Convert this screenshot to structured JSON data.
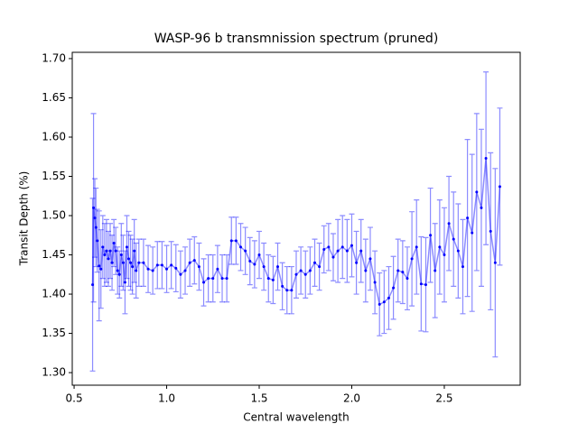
{
  "chart_data": {
    "type": "errorbar",
    "title": "WASP-96 b transmnission spectrum (pruned)",
    "x_label": "Central wavelength",
    "y_label": "Transit Depth (%)",
    "xlim": [
      0.49,
      2.91
    ],
    "ylim": [
      1.284,
      1.708
    ],
    "xticks": [
      0.5,
      {
        "value": 1.0,
        "label": "1.0"
      },
      1.5,
      {
        "value": 2.0,
        "label": "2.0"
      },
      2.5
    ],
    "yticks": [
      {
        "value": 1.3,
        "label": "1.30"
      },
      1.35,
      {
        "value": 1.4,
        "label": "1.40"
      },
      1.45,
      {
        "value": 1.5,
        "label": "1.50"
      },
      1.55,
      {
        "value": 1.6,
        "label": "1.60"
      },
      1.65,
      {
        "value": 1.7,
        "label": "1.70"
      }
    ],
    "series": [
      {
        "color": "#0000ff",
        "x": [
          0.6,
          0.605,
          0.612,
          0.618,
          0.625,
          0.635,
          0.645,
          0.655,
          0.665,
          0.675,
          0.685,
          0.695,
          0.705,
          0.715,
          0.725,
          0.735,
          0.745,
          0.755,
          0.765,
          0.775,
          0.785,
          0.795,
          0.805,
          0.815,
          0.825,
          0.835,
          0.85,
          0.875,
          0.9,
          0.925,
          0.95,
          0.975,
          1.0,
          1.025,
          1.05,
          1.075,
          1.1,
          1.125,
          1.15,
          1.175,
          1.2,
          1.225,
          1.25,
          1.275,
          1.3,
          1.325,
          1.35,
          1.375,
          1.4,
          1.425,
          1.45,
          1.475,
          1.5,
          1.525,
          1.55,
          1.575,
          1.6,
          1.625,
          1.65,
          1.675,
          1.7,
          1.725,
          1.75,
          1.775,
          1.8,
          1.825,
          1.85,
          1.875,
          1.9,
          1.925,
          1.95,
          1.975,
          2.0,
          2.025,
          2.05,
          2.075,
          2.1,
          2.125,
          2.15,
          2.175,
          2.2,
          2.225,
          2.25,
          2.275,
          2.3,
          2.325,
          2.35,
          2.375,
          2.4,
          2.425,
          2.45,
          2.475,
          2.5,
          2.525,
          2.55,
          2.575,
          2.6,
          2.625,
          2.65,
          2.675,
          2.7,
          2.725,
          2.75,
          2.775,
          2.8
        ],
        "values": [
          1.412,
          1.51,
          1.497,
          1.485,
          1.468,
          1.436,
          1.432,
          1.46,
          1.45,
          1.455,
          1.445,
          1.455,
          1.44,
          1.465,
          1.455,
          1.43,
          1.425,
          1.45,
          1.44,
          1.415,
          1.46,
          1.445,
          1.44,
          1.435,
          1.455,
          1.43,
          1.44,
          1.44,
          1.432,
          1.43,
          1.437,
          1.437,
          1.432,
          1.437,
          1.433,
          1.425,
          1.43,
          1.44,
          1.443,
          1.435,
          1.415,
          1.42,
          1.42,
          1.432,
          1.42,
          1.42,
          1.468,
          1.468,
          1.46,
          1.455,
          1.442,
          1.438,
          1.45,
          1.435,
          1.42,
          1.418,
          1.435,
          1.41,
          1.405,
          1.405,
          1.425,
          1.43,
          1.425,
          1.43,
          1.44,
          1.435,
          1.457,
          1.46,
          1.447,
          1.455,
          1.46,
          1.455,
          1.462,
          1.44,
          1.455,
          1.43,
          1.445,
          1.415,
          1.387,
          1.39,
          1.395,
          1.408,
          1.43,
          1.428,
          1.42,
          1.445,
          1.46,
          1.413,
          1.412,
          1.475,
          1.43,
          1.46,
          1.45,
          1.49,
          1.47,
          1.455,
          1.435,
          1.497,
          1.478,
          1.53,
          1.51,
          1.573,
          1.48,
          1.44,
          1.537
        ],
        "errors": [
          0.11,
          0.12,
          0.05,
          0.05,
          0.04,
          0.07,
          0.05,
          0.04,
          0.04,
          0.04,
          0.035,
          0.035,
          0.035,
          0.03,
          0.03,
          0.03,
          0.03,
          0.04,
          0.035,
          0.04,
          0.04,
          0.035,
          0.035,
          0.035,
          0.04,
          0.035,
          0.03,
          0.03,
          0.03,
          0.03,
          0.03,
          0.03,
          0.03,
          0.03,
          0.03,
          0.03,
          0.03,
          0.03,
          0.03,
          0.03,
          0.03,
          0.03,
          0.03,
          0.03,
          0.03,
          0.03,
          0.03,
          0.03,
          0.03,
          0.03,
          0.03,
          0.03,
          0.03,
          0.03,
          0.03,
          0.03,
          0.03,
          0.03,
          0.03,
          0.03,
          0.03,
          0.03,
          0.03,
          0.03,
          0.03,
          0.03,
          0.03,
          0.03,
          0.03,
          0.04,
          0.04,
          0.04,
          0.04,
          0.04,
          0.04,
          0.04,
          0.04,
          0.04,
          0.04,
          0.04,
          0.04,
          0.04,
          0.04,
          0.04,
          0.04,
          0.06,
          0.06,
          0.06,
          0.06,
          0.06,
          0.06,
          0.06,
          0.06,
          0.06,
          0.06,
          0.06,
          0.06,
          0.1,
          0.1,
          0.1,
          0.1,
          0.11,
          0.1,
          0.12,
          0.1
        ]
      }
    ]
  }
}
